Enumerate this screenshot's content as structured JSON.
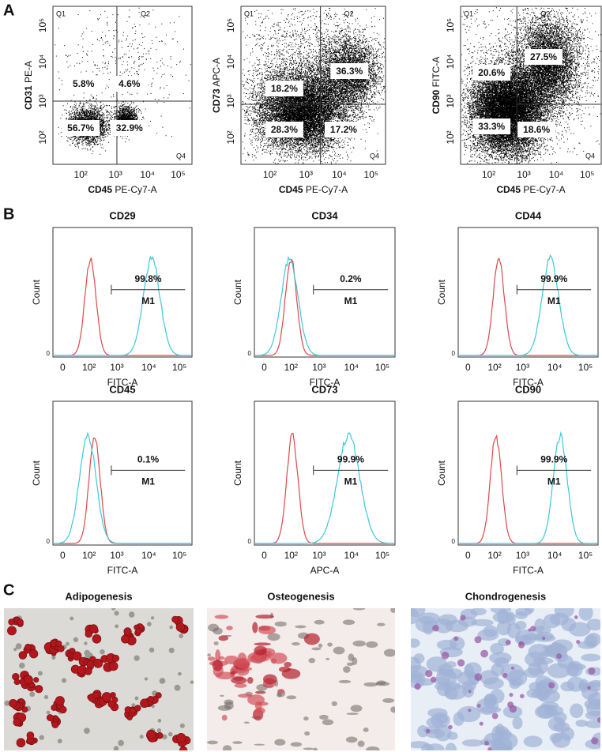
{
  "panel_labels": [
    "A",
    "B",
    "C"
  ],
  "scatter_plots": [
    {
      "y_marker": "CD31",
      "y_channel": "PE-A",
      "x_marker": "CD45",
      "x_channel": "PE-Cy7-A",
      "quadrants": [
        "Q1",
        "Q2",
        "Q4"
      ],
      "percentages": [
        "5.8%",
        "4.6%",
        "56.7%",
        "32.9%"
      ],
      "xticks": [
        "10²",
        "10³",
        "10⁴",
        "10⁵"
      ],
      "yticks": [
        "10²",
        "10³",
        "10⁴",
        "10⁵"
      ]
    },
    {
      "y_marker": "CD73",
      "y_channel": "APC-A",
      "x_marker": "CD45",
      "x_channel": "PE-Cy7-A",
      "quadrants": [
        "Q1",
        "Q2",
        "Q4"
      ],
      "percentages": [
        "18.2%",
        "36.3%",
        "28.3%",
        "17.2%"
      ],
      "xticks": [
        "10²",
        "10³",
        "10⁴",
        "10⁵"
      ],
      "yticks": [
        "10²",
        "10³",
        "10⁴",
        "10⁵"
      ]
    },
    {
      "y_marker": "CD90",
      "y_channel": "FITC-A",
      "x_marker": "CD45",
      "x_channel": "PE-Cy7-A",
      "quadrants": [
        "Q1",
        "Q2",
        "Q4"
      ],
      "percentages": [
        "20.6%",
        "27.5%",
        "33.3%",
        "18.6%"
      ],
      "xticks": [
        "10²",
        "10³",
        "10⁴",
        "10⁵"
      ],
      "yticks": [
        "10²",
        "10³",
        "10⁴",
        "10⁵"
      ]
    }
  ],
  "histograms": [
    {
      "title": "CD29",
      "y_label": "Count",
      "y_zero": "0",
      "percentage": "99.8%",
      "gate": "M1",
      "xticks": [
        "0",
        "10²",
        "10³",
        "10⁴",
        "10⁵"
      ],
      "x_label": "FITC-A"
    },
    {
      "title": "CD34",
      "y_label": "Count",
      "y_zero": "0",
      "percentage": "0.2%",
      "gate": "M1",
      "xticks": [
        "0",
        "10²",
        "10³",
        "10⁴",
        "10⁵"
      ],
      "x_label": "FITC-A"
    },
    {
      "title": "CD44",
      "y_label": "Count",
      "y_zero": "0",
      "percentage": "99.9%",
      "gate": "M1",
      "xticks": [
        "0",
        "10²",
        "10³",
        "10⁴",
        "10⁵"
      ],
      "x_label": "FITC-A"
    },
    {
      "title": "CD45",
      "y_label": "Count",
      "y_zero": "0",
      "percentage": "0.1%",
      "gate": "M1",
      "xticks": [
        "0",
        "10²",
        "10³",
        "10⁴",
        "10⁵"
      ],
      "x_label": "FITC-A"
    },
    {
      "title": "CD73",
      "y_label": "Count",
      "y_zero": "0",
      "percentage": "99.9%",
      "gate": "M1",
      "xticks": [
        "0",
        "10²",
        "10³",
        "10⁴",
        "10⁵"
      ],
      "x_label": "APC-A"
    },
    {
      "title": "CD90",
      "y_label": "Count",
      "y_zero": "0",
      "percentage": "99.9%",
      "gate": "M1",
      "xticks": [
        "0",
        "10²",
        "10³",
        "10⁴",
        "10⁵"
      ],
      "x_label": "FITC-A"
    }
  ],
  "images": [
    {
      "title": "Adipogenesis"
    },
    {
      "title": "Osteogenesis"
    },
    {
      "title": "Chondrogenesis"
    }
  ]
}
